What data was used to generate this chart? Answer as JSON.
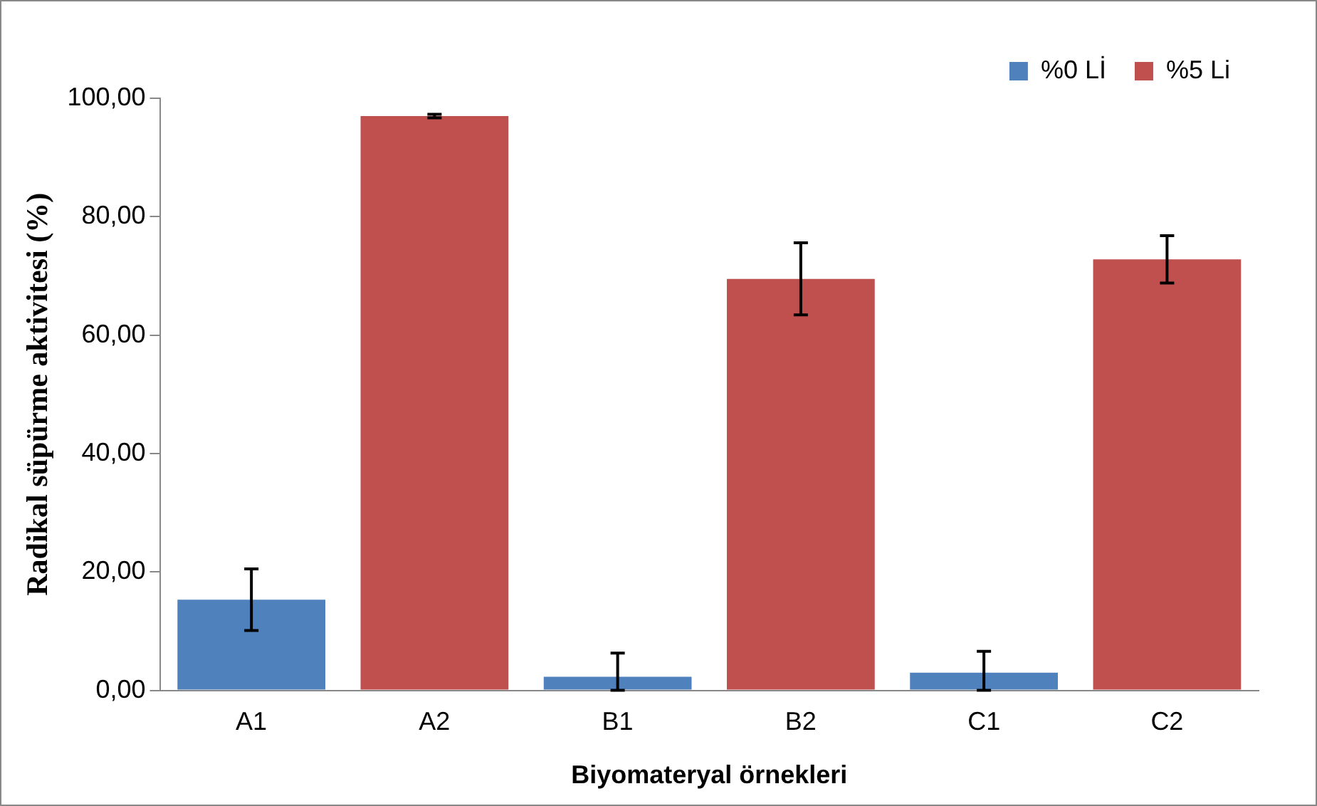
{
  "chart_data": {
    "type": "bar",
    "xlabel": "Biyomateryal örnekleri",
    "ylabel": "Radikal süpürme aktivitesi (%)",
    "categories": [
      "A1",
      "A2",
      "B1",
      "B2",
      "C1",
      "C2"
    ],
    "series": [
      {
        "name": "%0 Lİ",
        "color": "#4f81bd",
        "values": [
          15.3,
          null,
          2.3,
          null,
          3.0,
          null
        ],
        "errors": [
          5.2,
          null,
          [
            0,
            6.3
          ],
          null,
          [
            0,
            6.6
          ],
          null
        ]
      },
      {
        "name": "%5 Li",
        "color": "#c0504d",
        "values": [
          null,
          97.0,
          null,
          69.5,
          null,
          72.8
        ],
        "errors": [
          null,
          0.3,
          null,
          6.1,
          null,
          4.0
        ]
      }
    ],
    "ylim": [
      0,
      100
    ],
    "yticks": [
      {
        "value": 0,
        "label": "0,00"
      },
      {
        "value": 20,
        "label": "20,00"
      },
      {
        "value": 40,
        "label": "40,00"
      },
      {
        "value": 60,
        "label": "60,00"
      },
      {
        "value": 80,
        "label": "80,00"
      },
      {
        "value": 100,
        "label": "100,00"
      }
    ],
    "grid": false,
    "legend": "top right"
  }
}
